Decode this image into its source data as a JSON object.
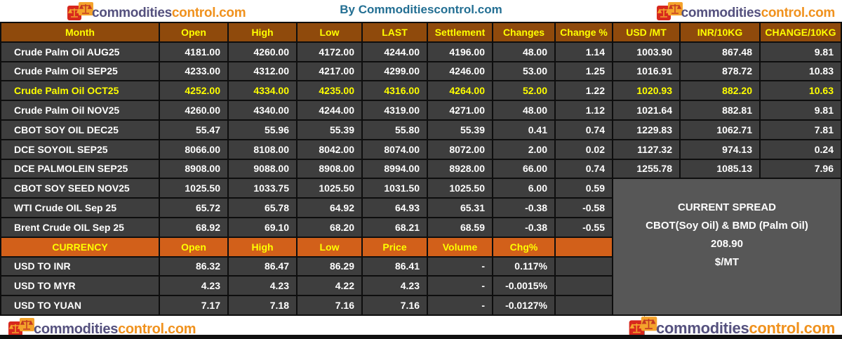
{
  "branding": {
    "logo_text_1": "commodities",
    "logo_text_2": "control.com",
    "title": "By Commoditiescontrol.com"
  },
  "colors": {
    "title_text": "#236F93",
    "header_bg": "#8F4A0C",
    "currency_header_bg": "#D2601A",
    "row_bg": "#3E3E3E",
    "spread_bg": "#575757",
    "grid_line": "#0E0E0E",
    "row_text": "#FFFFFF",
    "header_text": "#FFFF00",
    "highlight_text": "#FFFF00",
    "logo_dark": "#55517E",
    "logo_orange": "#F0921E"
  },
  "chart_data": [
    {
      "type": "table",
      "name": "futures_prices",
      "columns": [
        "Month",
        "Open",
        "High",
        "Low",
        "LAST",
        "Settlement",
        "Changes",
        "Change %",
        "USD /MT",
        "INR/10KG",
        "CHANGE/10KG"
      ],
      "rows": [
        {
          "label": "Crude Palm Oil AUG25",
          "highlight": false,
          "values": [
            "4181.00",
            "4260.00",
            "4172.00",
            "4244.00",
            "4196.00",
            "48.00",
            "1.14",
            "1003.90",
            "867.48",
            "9.81"
          ]
        },
        {
          "label": "Crude Palm Oil SEP25",
          "highlight": false,
          "values": [
            "4233.00",
            "4312.00",
            "4217.00",
            "4299.00",
            "4246.00",
            "53.00",
            "1.25",
            "1016.91",
            "878.72",
            "10.83"
          ]
        },
        {
          "label": "Crude Palm Oil OCT25",
          "highlight": true,
          "values": [
            "4252.00",
            "4334.00",
            "4235.00",
            "4316.00",
            "4264.00",
            "52.00",
            "1.22",
            "1020.93",
            "882.20",
            "10.63"
          ]
        },
        {
          "label": "Crude Palm Oil NOV25",
          "highlight": false,
          "values": [
            "4260.00",
            "4340.00",
            "4244.00",
            "4319.00",
            "4271.00",
            "48.00",
            "1.12",
            "1021.64",
            "882.81",
            "9.81"
          ]
        },
        {
          "label": "CBOT SOY OIL DEC25",
          "highlight": false,
          "values": [
            "55.47",
            "55.96",
            "55.39",
            "55.80",
            "55.39",
            "0.41",
            "0.74",
            "1229.83",
            "1062.71",
            "7.81"
          ]
        },
        {
          "label": "DCE SOYOIL SEP25",
          "highlight": false,
          "values": [
            "8066.00",
            "8108.00",
            "8042.00",
            "8074.00",
            "8072.00",
            "2.00",
            "0.02",
            "1127.32",
            "974.13",
            "0.24"
          ]
        },
        {
          "label": "DCE PALMOLEIN SEP25",
          "highlight": false,
          "values": [
            "8908.00",
            "9088.00",
            "8908.00",
            "8994.00",
            "8928.00",
            "66.00",
            "0.74",
            "1255.78",
            "1085.13",
            "7.96"
          ]
        },
        {
          "label": "CBOT SOY SEED NOV25",
          "highlight": false,
          "values": [
            "1025.50",
            "1033.75",
            "1025.50",
            "1031.50",
            "1025.50",
            "6.00",
            "0.59"
          ]
        },
        {
          "label": "WTI Crude OIL Sep 25",
          "highlight": false,
          "values": [
            "65.72",
            "65.78",
            "64.92",
            "64.93",
            "65.31",
            "-0.38",
            "-0.58"
          ]
        },
        {
          "label": "Brent Crude OIL Sep 25",
          "highlight": false,
          "values": [
            "68.92",
            "69.10",
            "68.20",
            "68.21",
            "68.59",
            "-0.38",
            "-0.55"
          ]
        }
      ]
    },
    {
      "type": "table",
      "name": "currency_rates",
      "columns": [
        "CURRENCY",
        "Open",
        "High",
        "Low",
        "Price",
        "Volume",
        "Chg%"
      ],
      "rows": [
        {
          "label": "USD TO INR",
          "values": [
            "86.32",
            "86.47",
            "86.29",
            "86.41",
            "-",
            "0.117%"
          ]
        },
        {
          "label": "USD TO MYR",
          "values": [
            "4.23",
            "4.23",
            "4.22",
            "4.23",
            "-",
            "-0.0015%"
          ]
        },
        {
          "label": "USD TO YUAN",
          "values": [
            "7.17",
            "7.18",
            "7.16",
            "7.16",
            "-",
            "-0.0127%"
          ]
        }
      ]
    },
    {
      "type": "table",
      "name": "current_spread_panel",
      "lines": [
        "CURRENT SPREAD",
        "CBOT(Soy Oil) & BMD (Palm Oil)",
        "208.90",
        "$/MT"
      ]
    }
  ]
}
